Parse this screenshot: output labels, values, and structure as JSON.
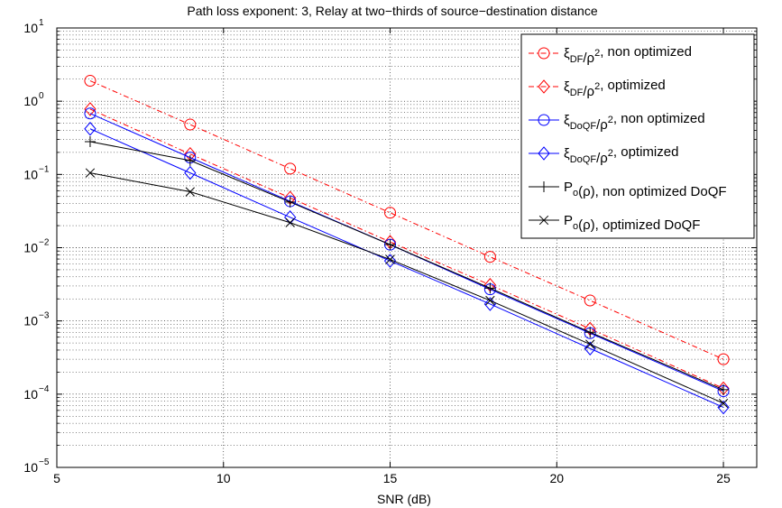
{
  "chart_data": {
    "type": "line",
    "title": "Path loss exponent: 3, Relay at two−thirds of source−destination distance",
    "xlabel": "SNR (dB)",
    "ylabel": "",
    "xlim": [
      5,
      26
    ],
    "ylim": [
      1e-05,
      10
    ],
    "yscale": "log",
    "grid": true,
    "legend_position": "top-right",
    "x_ticks": [
      5,
      10,
      15,
      20,
      25
    ],
    "x_tick_labels": [
      "5",
      "10",
      "15",
      "20",
      "25"
    ],
    "y_ticks": [
      1e-05,
      0.0001,
      0.001,
      0.01,
      0.1,
      1,
      10
    ],
    "y_tick_labels": [
      {
        "base": "10",
        "exp": "−5"
      },
      {
        "base": "10",
        "exp": "−4"
      },
      {
        "base": "10",
        "exp": "−3"
      },
      {
        "base": "10",
        "exp": "−2"
      },
      {
        "base": "10",
        "exp": "−1"
      },
      {
        "base": "10",
        "exp": "0"
      },
      {
        "base": "10",
        "exp": "1"
      }
    ],
    "x": [
      6,
      9,
      12,
      15,
      18,
      21,
      25
    ],
    "series": [
      {
        "legend": [
          {
            "t": "ξ"
          },
          {
            "t": "DF",
            "s": "sub"
          },
          {
            "t": "/ρ"
          },
          {
            "t": "2",
            "s": "sup"
          },
          {
            "t": ", non optimized"
          }
        ],
        "values": [
          1.9,
          0.48,
          0.12,
          0.03,
          0.0075,
          0.0019,
          0.0003
        ],
        "color": "#ff0000",
        "dash": "6,3,1.5,3",
        "marker": "circle"
      },
      {
        "legend": [
          {
            "t": "ξ"
          },
          {
            "t": "DF",
            "s": "sub"
          },
          {
            "t": "/ρ"
          },
          {
            "t": "2",
            "s": "sup"
          },
          {
            "t": ", optimized"
          }
        ],
        "values": [
          0.78,
          0.19,
          0.048,
          0.012,
          0.0031,
          0.00078,
          0.00012
        ],
        "color": "#ff0000",
        "dash": "6,3,1.5,3",
        "marker": "diamond"
      },
      {
        "legend": [
          {
            "t": "ξ"
          },
          {
            "t": "DoQF",
            "s": "sub"
          },
          {
            "t": "/ρ"
          },
          {
            "t": "2",
            "s": "sup"
          },
          {
            "t": ", non optimized"
          }
        ],
        "values": [
          0.68,
          0.17,
          0.043,
          0.011,
          0.0027,
          0.00068,
          0.00011
        ],
        "color": "#0000ff",
        "dash": "",
        "marker": "circle"
      },
      {
        "legend": [
          {
            "t": "ξ"
          },
          {
            "t": "DoQF",
            "s": "sub"
          },
          {
            "t": "/ρ"
          },
          {
            "t": "2",
            "s": "sup"
          },
          {
            "t": ", optimized"
          }
        ],
        "values": [
          0.42,
          0.105,
          0.026,
          0.0066,
          0.0017,
          0.00042,
          6.6e-05
        ],
        "color": "#0000ff",
        "dash": "",
        "marker": "diamond"
      },
      {
        "legend": [
          {
            "t": "P"
          },
          {
            "t": "o",
            "s": "sub"
          },
          {
            "t": "(ρ), non optimized DoQF"
          }
        ],
        "values": [
          0.28,
          0.155,
          0.042,
          0.011,
          0.0028,
          0.0007,
          0.000115
        ],
        "color": "#000000",
        "dash": "",
        "marker": "plus"
      },
      {
        "legend": [
          {
            "t": "P"
          },
          {
            "t": "o",
            "s": "sub"
          },
          {
            "t": "(ρ), optimized DoQF"
          }
        ],
        "values": [
          0.105,
          0.058,
          0.022,
          0.0069,
          0.0019,
          0.00048,
          7.5e-05
        ],
        "color": "#000000",
        "dash": "",
        "marker": "cross"
      }
    ]
  }
}
